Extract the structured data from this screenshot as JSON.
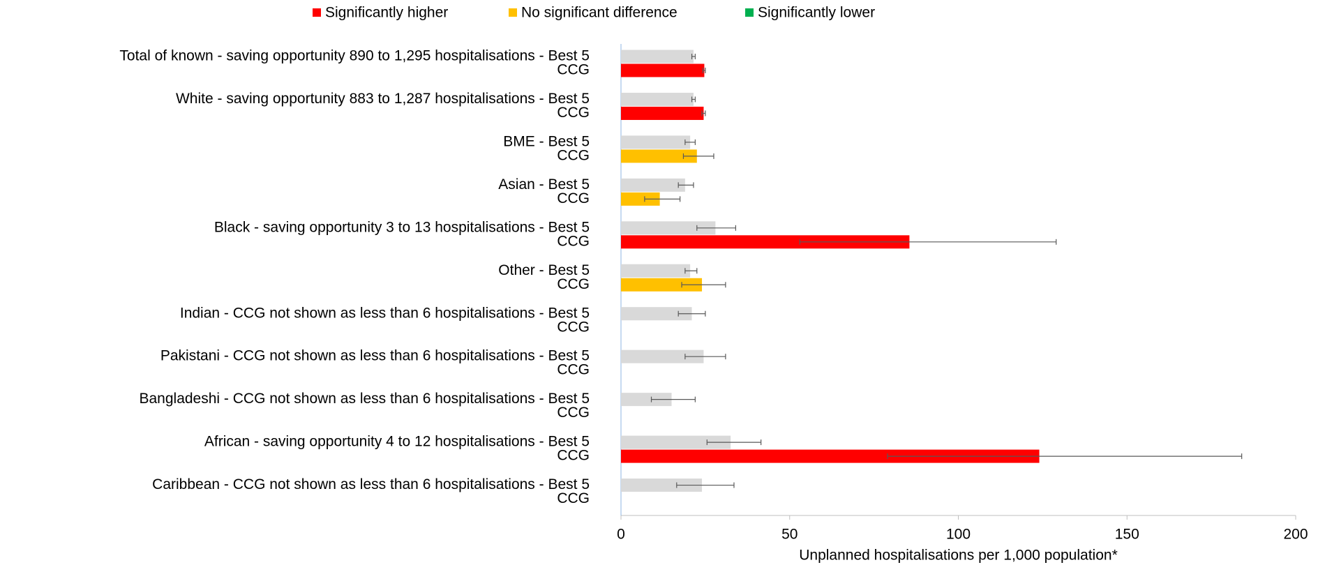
{
  "chart_data": {
    "type": "bar",
    "orientation": "horizontal",
    "xlabel": "Unplanned hospitalisations per 1,000 population*",
    "xlim": [
      0,
      200
    ],
    "xticks": [
      0,
      50,
      100,
      150,
      200
    ],
    "categories": [
      "Total of known - saving opportunity 890 to 1,295 hospitalisations - Best 5",
      "White - saving opportunity 883 to 1,287 hospitalisations - Best 5",
      "BME - Best 5",
      "Asian - Best 5",
      "Black - saving opportunity 3 to 13 hospitalisations - Best 5",
      "Other - Best 5",
      "Indian - CCG not shown as less than 6 hospitalisations  - Best 5",
      "Pakistani - CCG not shown as less than 6 hospitalisations  - Best 5",
      "Bangladeshi - CCG not shown as less than 6 hospitalisations  - Best 5",
      "African - saving opportunity 4 to 12 hospitalisations - Best 5",
      "Caribbean - CCG not shown as less than 6 hospitalisations  - Best 5"
    ],
    "second_label": "CCG",
    "legend": [
      {
        "name": "Significantly higher",
        "color": "#ff0000"
      },
      {
        "name": "No significant difference",
        "color": "#ffc000"
      },
      {
        "name": "Significantly lower",
        "color": "#00b050"
      }
    ],
    "best5": {
      "color": "#d9d9d9",
      "values": [
        21.5,
        21.5,
        20.5,
        19,
        28,
        20.5,
        21,
        24.5,
        15,
        32.5,
        24
      ],
      "lower": [
        21,
        21,
        19,
        17,
        22.5,
        19,
        17,
        19,
        9,
        25.5,
        16.5
      ],
      "upper": [
        22,
        22,
        22,
        21.5,
        34,
        22.5,
        25,
        31,
        22,
        41.5,
        33.5
      ]
    },
    "ccg": {
      "values": [
        24.7,
        24.5,
        22.5,
        11.5,
        85.5,
        24,
        null,
        null,
        null,
        124,
        null
      ],
      "lower": [
        24.3,
        24,
        18.5,
        7,
        53,
        18,
        null,
        null,
        null,
        79,
        null
      ],
      "upper": [
        25,
        25,
        27.5,
        17.5,
        129,
        31,
        null,
        null,
        null,
        184,
        null
      ],
      "significance": [
        0,
        0,
        1,
        1,
        0,
        1,
        null,
        null,
        null,
        0,
        null
      ]
    }
  }
}
